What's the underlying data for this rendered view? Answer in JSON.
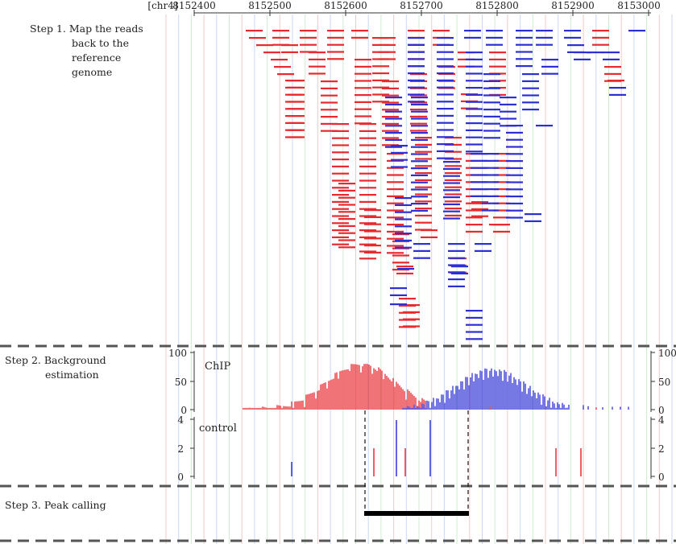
{
  "header": {
    "chrom_label": "[chr4]",
    "positions": [
      "8152400",
      "8152500",
      "8152600",
      "8152700",
      "8152800",
      "8152900",
      "8153000"
    ]
  },
  "steps": {
    "step1": {
      "line1": "Step 1. Map the reads",
      "line2": "back to the",
      "line3": "reference",
      "line4": "genome"
    },
    "step2": {
      "line1": "Step 2. Background",
      "line2": "estimation"
    },
    "step3": {
      "line1": "Step 3. Peak calling"
    }
  },
  "chip": {
    "label": "ChIP",
    "ticks": [
      "100",
      "50",
      "0"
    ]
  },
  "control": {
    "label": "control",
    "ticks": [
      "4",
      "2",
      "0"
    ]
  },
  "colors": {
    "plus_strand": "#e8292e",
    "minus_strand": "#2d2fd6",
    "separator": "#555555",
    "peak": "#000000"
  }
}
